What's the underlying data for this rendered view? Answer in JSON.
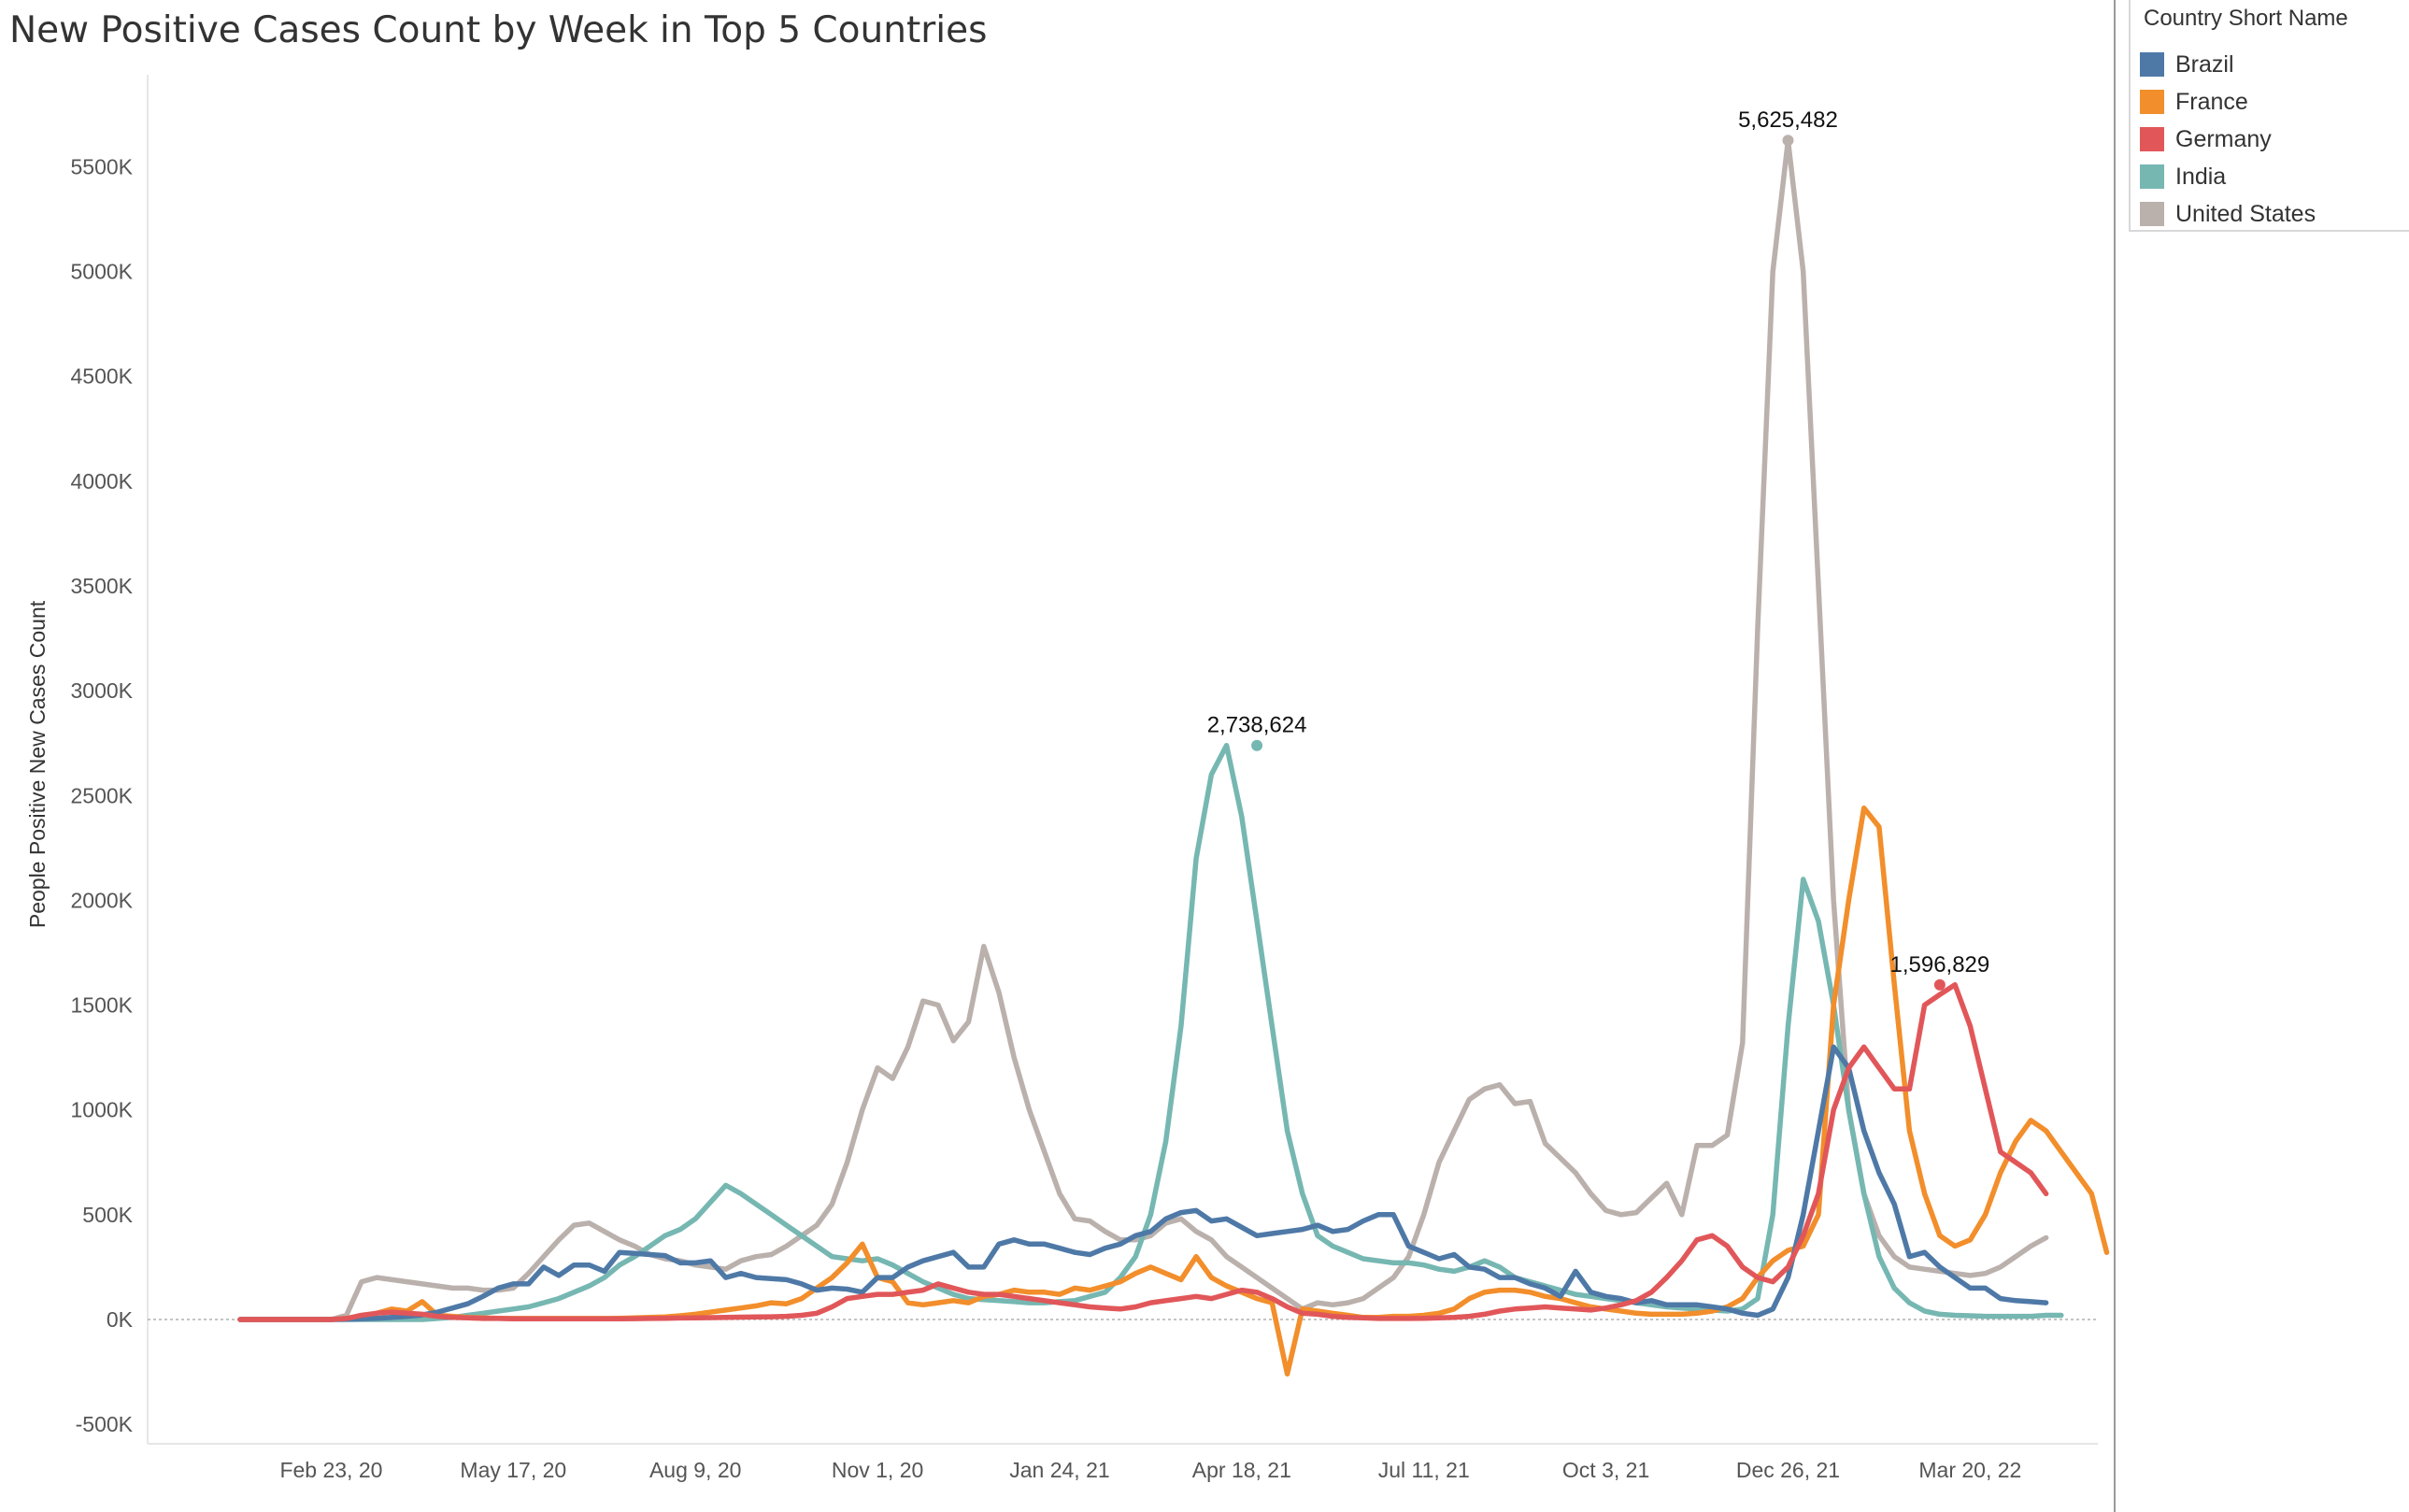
{
  "title": "New Positive Cases Count by Week in Top 5 Countries",
  "legend": {
    "title": "Country Short Name",
    "items": [
      {
        "label": "Brazil",
        "color": "#4e79a7"
      },
      {
        "label": "France",
        "color": "#f28e2b"
      },
      {
        "label": "Germany",
        "color": "#e15759"
      },
      {
        "label": "India",
        "color": "#76b7b2"
      },
      {
        "label": "United States",
        "color": "#bab0ac"
      }
    ]
  },
  "chart_data": {
    "type": "line",
    "title": "New Positive Cases Count by Week in Top 5 Countries",
    "xlabel": "",
    "ylabel": "People Positive New Cases Count",
    "x_tick_labels": [
      "Feb 23, 20",
      "May 17, 20",
      "Aug 9, 20",
      "Nov 1, 20",
      "Jan 24, 21",
      "Apr 18, 21",
      "Jul 11, 21",
      "Oct 3, 21",
      "Dec 26, 21",
      "Mar 20, 22"
    ],
    "x_tick_index": [
      6,
      18,
      30,
      42,
      54,
      66,
      78,
      90,
      102,
      114
    ],
    "y_tick_labels": [
      "-500K",
      "0K",
      "500K",
      "1000K",
      "1500K",
      "2000K",
      "2500K",
      "3000K",
      "3500K",
      "4000K",
      "4500K",
      "5000K",
      "5500K"
    ],
    "y_tick_values": [
      -500,
      0,
      500,
      1000,
      1500,
      2000,
      2500,
      3000,
      3500,
      4000,
      4500,
      5000,
      5500
    ],
    "y_unit": "thousands",
    "ylim": [
      -570,
      5850
    ],
    "x_start": "Jan 12, 20",
    "x_interval": "weekly",
    "zero_reference_line": true,
    "grid": false,
    "legend_position": "right",
    "annotations": [
      {
        "series": "India",
        "index": 67,
        "value": 2738.624,
        "label": "2,738,624"
      },
      {
        "series": "United States",
        "index": 102,
        "value": 5625.482,
        "label": "5,625,482"
      },
      {
        "series": "Germany",
        "index": 112,
        "value": 1596.829,
        "label": "1,596,829"
      }
    ],
    "series": [
      {
        "name": "Brazil",
        "color": "#4e79a7",
        "values": [
          0,
          0,
          0,
          0,
          0,
          0,
          0,
          1,
          3,
          6,
          10,
          15,
          22,
          35,
          55,
          75,
          110,
          150,
          170,
          170,
          250,
          210,
          260,
          260,
          230,
          320,
          315,
          310,
          305,
          270,
          270,
          280,
          200,
          220,
          200,
          195,
          190,
          170,
          140,
          150,
          145,
          130,
          200,
          200,
          250,
          280,
          300,
          320,
          250,
          250,
          360,
          380,
          360,
          360,
          340,
          320,
          310,
          340,
          360,
          400,
          420,
          480,
          510,
          520,
          470,
          480,
          440,
          400,
          410,
          420,
          430,
          450,
          420,
          430,
          470,
          500,
          500,
          350,
          320,
          290,
          310,
          250,
          240,
          200,
          200,
          170,
          150,
          110,
          230,
          130,
          110,
          100,
          80,
          90,
          70,
          70,
          70,
          60,
          50,
          30,
          20,
          50,
          200,
          500,
          900,
          1300,
          1200,
          900,
          700,
          550,
          300,
          320,
          250,
          200,
          150,
          150,
          100,
          90,
          85,
          80
        ]
      },
      {
        "name": "France",
        "color": "#f28e2b",
        "values": [
          0,
          0,
          0,
          0,
          0,
          0,
          0,
          5,
          15,
          30,
          50,
          40,
          85,
          20,
          15,
          10,
          8,
          6,
          5,
          5,
          5,
          5,
          5,
          5,
          5,
          6,
          8,
          10,
          12,
          18,
          25,
          35,
          45,
          55,
          65,
          80,
          75,
          100,
          150,
          200,
          270,
          360,
          200,
          180,
          80,
          70,
          80,
          90,
          80,
          110,
          120,
          140,
          130,
          130,
          120,
          150,
          140,
          160,
          180,
          220,
          250,
          220,
          190,
          300,
          200,
          160,
          130,
          100,
          80,
          -260,
          50,
          40,
          30,
          20,
          10,
          10,
          15,
          15,
          20,
          30,
          50,
          100,
          130,
          140,
          140,
          130,
          110,
          100,
          80,
          60,
          50,
          40,
          30,
          25,
          25,
          25,
          30,
          40,
          60,
          100,
          200,
          280,
          330,
          350,
          500,
          1500,
          2000,
          2440,
          2350,
          1600,
          900,
          600,
          400,
          350,
          380,
          500,
          700,
          850,
          950,
          900,
          800,
          700,
          600,
          320
        ]
      },
      {
        "name": "Germany",
        "color": "#e15759",
        "values": [
          0,
          0,
          0,
          0,
          0,
          0,
          0,
          5,
          20,
          30,
          35,
          30,
          25,
          15,
          10,
          8,
          5,
          5,
          3,
          3,
          3,
          3,
          3,
          3,
          3,
          3,
          4,
          5,
          6,
          7,
          8,
          9,
          10,
          11,
          12,
          13,
          15,
          20,
          30,
          60,
          100,
          110,
          120,
          120,
          130,
          140,
          170,
          150,
          130,
          120,
          120,
          110,
          100,
          90,
          80,
          70,
          60,
          55,
          50,
          60,
          80,
          90,
          100,
          110,
          100,
          120,
          140,
          130,
          100,
          60,
          30,
          25,
          15,
          10,
          8,
          5,
          5,
          5,
          6,
          8,
          10,
          15,
          25,
          40,
          50,
          55,
          60,
          55,
          50,
          45,
          55,
          70,
          90,
          130,
          200,
          280,
          380,
          400,
          350,
          250,
          200,
          180,
          250,
          400,
          600,
          1000,
          1200,
          1300,
          1200,
          1100,
          1100,
          1500,
          1550,
          1596.829,
          1400,
          1100,
          800,
          750,
          700,
          600
        ]
      },
      {
        "name": "India",
        "color": "#76b7b2",
        "values": [
          0,
          0,
          0,
          0,
          0,
          0,
          0,
          0,
          0,
          0,
          0,
          0,
          0,
          5,
          10,
          20,
          30,
          40,
          50,
          60,
          80,
          100,
          130,
          160,
          200,
          260,
          300,
          350,
          400,
          430,
          480,
          560,
          640,
          600,
          550,
          500,
          450,
          400,
          350,
          300,
          290,
          280,
          290,
          260,
          220,
          180,
          150,
          120,
          100,
          95,
          90,
          85,
          80,
          80,
          85,
          90,
          110,
          130,
          200,
          300,
          500,
          850,
          1400,
          2200,
          2600,
          2738.624,
          2400,
          1900,
          1400,
          900,
          600,
          400,
          350,
          320,
          290,
          280,
          270,
          270,
          260,
          240,
          230,
          250,
          280,
          250,
          200,
          180,
          160,
          140,
          120,
          110,
          100,
          90,
          80,
          70,
          60,
          55,
          50,
          45,
          40,
          50,
          100,
          500,
          1400,
          2100,
          1900,
          1500,
          1000,
          600,
          300,
          150,
          80,
          40,
          25,
          20,
          18,
          15,
          15,
          15,
          15,
          20,
          20
        ]
      },
      {
        "name": "United States",
        "color": "#bab0ac",
        "values": [
          0,
          0,
          0,
          0,
          0,
          0,
          0,
          20,
          180,
          200,
          190,
          180,
          170,
          160,
          150,
          150,
          140,
          140,
          150,
          220,
          300,
          380,
          450,
          460,
          420,
          380,
          350,
          310,
          290,
          280,
          260,
          250,
          240,
          280,
          300,
          310,
          350,
          400,
          450,
          550,
          750,
          1000,
          1200,
          1150,
          1300,
          1520,
          1500,
          1330,
          1420,
          1780,
          1560,
          1250,
          1000,
          800,
          600,
          480,
          470,
          420,
          380,
          380,
          400,
          460,
          480,
          420,
          380,
          300,
          250,
          200,
          150,
          100,
          50,
          80,
          70,
          80,
          100,
          150,
          200,
          300,
          500,
          750,
          900,
          1050,
          1100,
          1120,
          1030,
          1040,
          840,
          770,
          700,
          600,
          520,
          500,
          510,
          580,
          650,
          500,
          830,
          830,
          880,
          1320,
          3300,
          5000,
          5625.482,
          5000,
          3500,
          2000,
          1000,
          600,
          400,
          300,
          250,
          240,
          230,
          220,
          210,
          220,
          250,
          300,
          350,
          390
        ]
      }
    ]
  }
}
